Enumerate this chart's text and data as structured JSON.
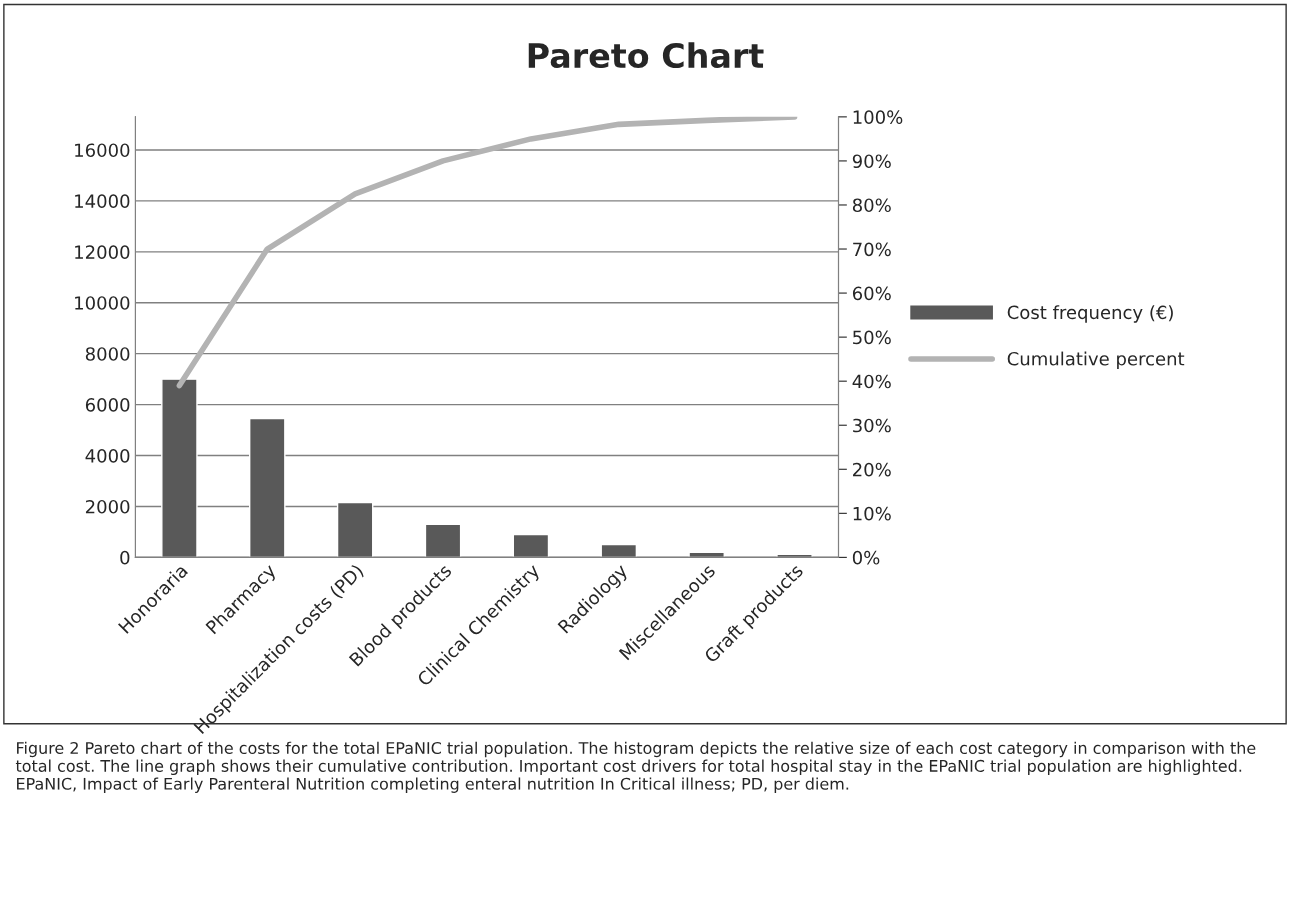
{
  "chart_data": {
    "type": "bar",
    "title": "Pareto Chart",
    "categories": [
      "Honoraria",
      "Pharmacy",
      "Hospitalization costs (PD)",
      "Blood products",
      "Clinical Chemistry",
      "Radiology",
      "Miscellaneous",
      "Graft products"
    ],
    "series": [
      {
        "name": "Cost frequency (€)",
        "color": "#595959",
        "values": [
          7000,
          5450,
          2150,
          1300,
          900,
          500,
          200,
          120
        ]
      },
      {
        "name": "Cumulative percent",
        "type": "line",
        "axis": "y2",
        "color": "#b3b3b3",
        "values": [
          39,
          70,
          82.5,
          90,
          95,
          98.3,
          99.2,
          100
        ]
      }
    ],
    "ylim": [
      0,
      17300
    ],
    "yticks": [
      0,
      2000,
      4000,
      6000,
      8000,
      10000,
      12000,
      14000,
      16000
    ],
    "y2lim": [
      0,
      100
    ],
    "y2ticks": [
      {
        "value": 0,
        "label": "0%"
      },
      {
        "value": 10,
        "label": "10%"
      },
      {
        "value": 20,
        "label": "20%"
      },
      {
        "value": 30,
        "label": "30%"
      },
      {
        "value": 40,
        "label": "40%"
      },
      {
        "value": 50,
        "label": "50%"
      },
      {
        "value": 60,
        "label": "60%"
      },
      {
        "value": 70,
        "label": "70%"
      },
      {
        "value": 80,
        "label": "80%"
      },
      {
        "value": 90,
        "label": "90%"
      },
      {
        "value": 100,
        "label": "100%"
      }
    ],
    "grid": "y",
    "legend": "right",
    "marker": "none",
    "line_style": "solid",
    "annotations": [
      "Figure 2 Pareto chart of the costs for the total EPaNIC trial population. The histogram depicts the relative size of each cost category in comparison with the total cost. The line graph shows their cumulative contribution. Important cost drivers for total hospital stay in the EPaNIC trial population are highlighted. EPaNIC, Impact of Early Parenteral Nutrition completing enteral nutrition In Critical illness; PD, per diem."
    ]
  }
}
